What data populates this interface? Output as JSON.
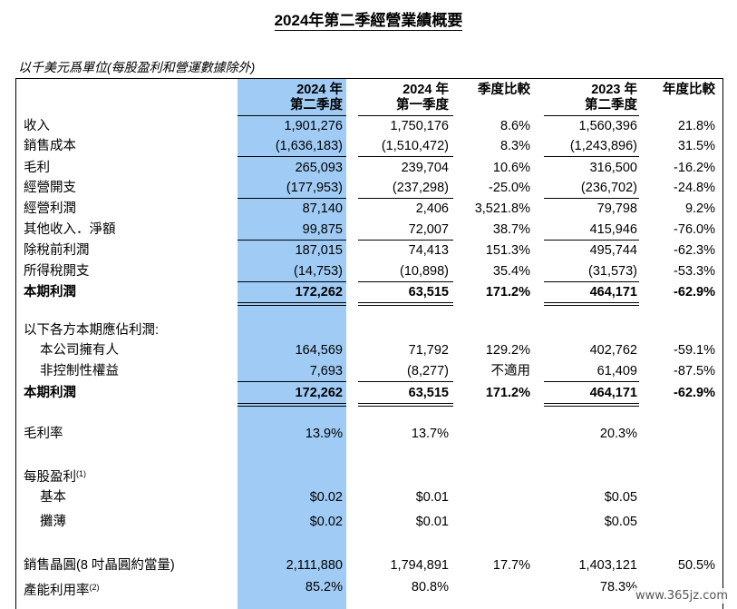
{
  "title": "2024年第二季經營業績概要",
  "unit_note": "以千美元爲單位(每股盈利和營運數據除外)",
  "headers": {
    "c1_line1": "2024 年",
    "c1_line2": "第二季度",
    "c2_line1": "2024 年",
    "c2_line2": "第一季度",
    "c3_line1": "季度比較",
    "c4_line1": "2023 年",
    "c4_line2": "第二季度",
    "c5_line1": "年度比較"
  },
  "rows": [
    {
      "label": "收入",
      "v": [
        "1,901,276",
        "1,750,176",
        "8.6%",
        "1,560,396",
        "21.8%"
      ]
    },
    {
      "label": "銷售成本",
      "v": [
        "(1,636,183)",
        "(1,510,472)",
        "8.3%",
        "(1,243,896)",
        "31.5%"
      ]
    },
    {
      "label": "毛利",
      "v": [
        "265,093",
        "239,704",
        "10.6%",
        "316,500",
        "-16.2%"
      ]
    },
    {
      "label": "經營開支",
      "v": [
        "(177,953)",
        "(237,298)",
        "-25.0%",
        "(236,702)",
        "-24.8%"
      ]
    },
    {
      "label": "經營利潤",
      "v": [
        "87,140",
        "2,406",
        "3,521.8%",
        "79,798",
        "9.2%"
      ]
    },
    {
      "label": "其他收入．淨額",
      "v": [
        "99,875",
        "72,007",
        "38.7%",
        "415,946",
        "-76.0%"
      ]
    },
    {
      "label": "除稅前利潤",
      "v": [
        "187,015",
        "74,413",
        "151.3%",
        "495,744",
        "-62.3%"
      ]
    },
    {
      "label": "所得稅開支",
      "v": [
        "(14,753)",
        "(10,898)",
        "35.4%",
        "(31,573)",
        "-53.3%"
      ]
    },
    {
      "label": "本期利潤",
      "v": [
        "172,262",
        "63,515",
        "171.2%",
        "464,171",
        "-62.9%"
      ]
    },
    {
      "label": "以下各方本期應佔利潤:",
      "v": [
        "",
        "",
        "",
        "",
        ""
      ]
    },
    {
      "label": "本公司擁有人",
      "v": [
        "164,569",
        "71,792",
        "129.2%",
        "402,762",
        "-59.1%"
      ]
    },
    {
      "label": "非控制性權益",
      "v": [
        "7,693",
        "(8,277)",
        "不適用",
        "61,409",
        "-87.5%"
      ]
    },
    {
      "label": "本期利潤",
      "v": [
        "172,262",
        "63,515",
        "171.2%",
        "464,171",
        "-62.9%"
      ]
    },
    {
      "label": "毛利率",
      "v": [
        "13.9%",
        "13.7%",
        "",
        "20.3%",
        ""
      ]
    },
    {
      "label": "每股盈利",
      "sup": "(1)",
      "v": [
        "",
        "",
        "",
        "",
        ""
      ]
    },
    {
      "label": "基本",
      "v": [
        "$0.02",
        "$0.01",
        "",
        "$0.05",
        ""
      ]
    },
    {
      "label": "攤薄",
      "v": [
        "$0.02",
        "$0.01",
        "",
        "$0.05",
        ""
      ]
    },
    {
      "label": "銷售晶圓(8 吋晶圓約當量)",
      "v": [
        "2,111,880",
        "1,794,891",
        "17.7%",
        "1,403,121",
        "50.5%"
      ]
    },
    {
      "label": "產能利用率",
      "sup": "(2)",
      "v": [
        "85.2%",
        "80.8%",
        "",
        "78.3%",
        ""
      ]
    }
  ],
  "watermark": "www.365jz.com"
}
